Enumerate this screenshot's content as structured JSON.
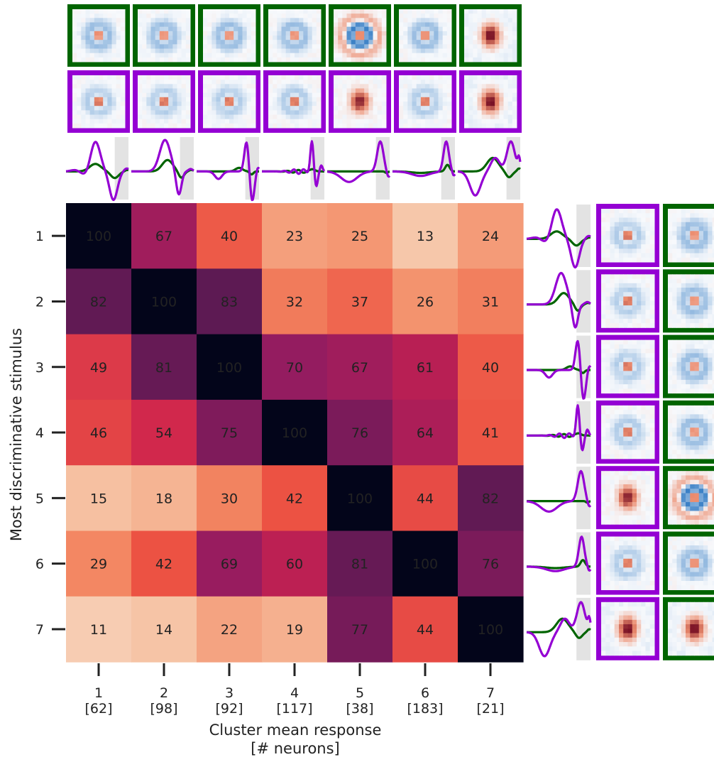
{
  "chart_data": {
    "type": "heatmap",
    "xlabel": "Cluster mean response",
    "xlabel_sub": "[# neurons]",
    "ylabel": "Most discriminative stimulus",
    "x_categories": [
      "1",
      "2",
      "3",
      "4",
      "5",
      "6",
      "7"
    ],
    "x_counts": [
      "[62]",
      "[98]",
      "[92]",
      "[117]",
      "[38]",
      "[183]",
      "[21]"
    ],
    "y_categories": [
      "1",
      "2",
      "3",
      "4",
      "5",
      "6",
      "7"
    ],
    "values": [
      [
        100,
        67,
        40,
        23,
        25,
        13,
        24
      ],
      [
        82,
        100,
        83,
        32,
        37,
        26,
        31
      ],
      [
        49,
        81,
        100,
        70,
        67,
        61,
        40
      ],
      [
        46,
        54,
        75,
        100,
        76,
        64,
        41
      ],
      [
        15,
        18,
        30,
        42,
        100,
        44,
        82
      ],
      [
        29,
        42,
        69,
        60,
        81,
        100,
        76
      ],
      [
        11,
        14,
        22,
        19,
        77,
        44,
        100
      ]
    ],
    "value_range": [
      0,
      100
    ],
    "colormap": "rocket_reversed",
    "annotation_color_light": "#ffffff",
    "annotation_color_dark": "#262626",
    "stimulus_border_colors": {
      "cluster_mean": "#006400",
      "discriminative": "#9400D3"
    },
    "temporal_trace_colors": {
      "cluster_mean": "#006400",
      "discriminative": "#9400D3",
      "shade": "#e3e3e3"
    },
    "stimulus_types": [
      "center-surround",
      "center-surround",
      "center-surround",
      "center-surround",
      "ring",
      "center-surround",
      "blob"
    ]
  }
}
